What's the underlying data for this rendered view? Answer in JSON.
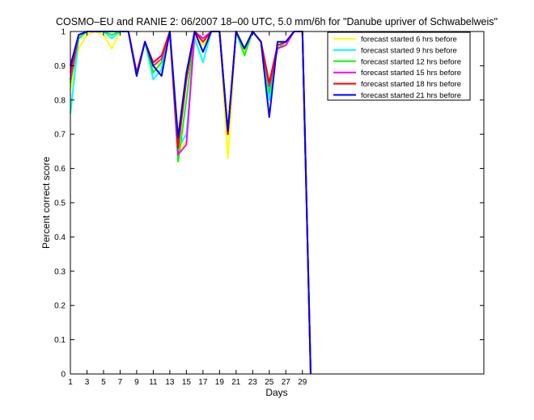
{
  "chart_data": {
    "type": "line",
    "title": "COSMO–EU and RANIE 2: 06/2007 18–00 UTC, 5.0 mm/6h for \"Danube upriver of Schwabelweis\"",
    "xlabel": "Days",
    "ylabel": "Percent correct score",
    "xlim": [
      1,
      30
    ],
    "ylim": [
      0,
      1
    ],
    "xticks": [
      1,
      3,
      5,
      7,
      9,
      11,
      13,
      15,
      17,
      19,
      21,
      23,
      25,
      27,
      29
    ],
    "yticks": [
      0,
      0.1,
      0.2,
      0.3,
      0.4,
      0.5,
      0.6,
      0.7,
      0.8,
      0.9,
      1
    ],
    "ytick_labels": [
      "0",
      "0.1",
      "0.2",
      "0.3",
      "0.4",
      "0.5",
      "0.6",
      "0.7",
      "0.8",
      "0.9",
      "1"
    ],
    "grid": false,
    "legend_position": "top-right",
    "x": [
      1,
      2,
      3,
      4,
      5,
      6,
      7,
      8,
      9,
      10,
      11,
      12,
      13,
      14,
      15,
      16,
      17,
      18,
      19,
      20,
      21,
      22,
      23,
      24,
      25,
      26,
      27,
      28,
      29,
      30
    ],
    "series": [
      {
        "name": "forecast started 6 hrs before",
        "color": "#ffff00",
        "values": [
          0.83,
          0.95,
          0.99,
          1.0,
          0.99,
          0.95,
          1.0,
          1.0,
          0.87,
          0.97,
          0.9,
          0.91,
          1.0,
          0.65,
          0.68,
          1.0,
          0.96,
          1.0,
          1.0,
          0.63,
          1.0,
          0.94,
          1.0,
          0.97,
          0.85,
          0.95,
          0.97,
          1.0,
          1.0,
          0.0
        ]
      },
      {
        "name": "forecast started 9 hrs before",
        "color": "#00ffff",
        "values": [
          0.76,
          0.98,
          1.0,
          1.0,
          1.0,
          0.98,
          1.0,
          1.0,
          0.87,
          0.97,
          0.86,
          0.89,
          1.0,
          0.66,
          0.7,
          0.98,
          0.91,
          1.0,
          1.0,
          0.7,
          1.0,
          0.95,
          1.0,
          0.97,
          0.8,
          0.96,
          0.97,
          1.0,
          1.0,
          0.0
        ]
      },
      {
        "name": "forecast started 12 hrs before",
        "color": "#00ff00",
        "values": [
          0.85,
          0.98,
          1.0,
          1.0,
          1.0,
          0.99,
          1.0,
          1.0,
          0.87,
          0.97,
          0.88,
          0.91,
          1.0,
          0.62,
          0.8,
          1.0,
          0.94,
          1.0,
          1.0,
          0.7,
          1.0,
          0.93,
          1.0,
          0.97,
          0.82,
          0.95,
          0.97,
          1.0,
          1.0,
          0.0
        ]
      },
      {
        "name": "forecast started 15 hrs before",
        "color": "#ff00ff",
        "values": [
          0.86,
          0.99,
          1.0,
          1.0,
          1.0,
          1.0,
          1.0,
          1.0,
          0.88,
          0.97,
          0.9,
          0.92,
          1.0,
          0.64,
          0.67,
          1.0,
          0.98,
          1.0,
          1.0,
          0.7,
          1.0,
          0.95,
          1.0,
          0.97,
          0.84,
          0.95,
          0.96,
          1.0,
          1.0,
          0.0
        ]
      },
      {
        "name": "forecast started 18 hrs before",
        "color": "#ff0000",
        "values": [
          0.88,
          0.99,
          1.0,
          1.0,
          1.0,
          1.0,
          1.0,
          1.0,
          0.88,
          0.97,
          0.91,
          0.93,
          1.0,
          0.66,
          0.86,
          1.0,
          0.97,
          1.0,
          1.0,
          0.7,
          1.0,
          0.95,
          1.0,
          0.97,
          0.85,
          0.96,
          0.97,
          1.0,
          1.0,
          0.0
        ]
      },
      {
        "name": "forecast started 21 hrs before",
        "color": "#0000ff",
        "values": [
          0.9,
          0.99,
          1.0,
          1.0,
          1.0,
          1.0,
          1.0,
          1.0,
          0.87,
          0.97,
          0.9,
          0.87,
          1.0,
          0.69,
          0.88,
          1.0,
          0.94,
          1.0,
          1.0,
          0.71,
          1.0,
          0.95,
          1.0,
          0.97,
          0.75,
          0.97,
          0.97,
          1.0,
          1.0,
          0.0
        ]
      }
    ]
  }
}
